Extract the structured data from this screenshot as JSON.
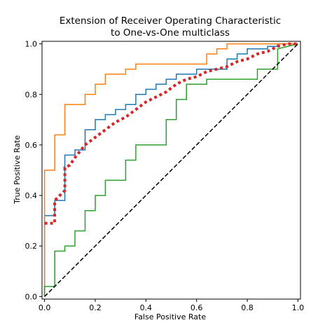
{
  "chart_data": {
    "type": "line",
    "title": [
      "Extension of Receiver Operating Characteristic",
      "to One-vs-One multiclass"
    ],
    "xlabel": "False Positive Rate",
    "ylabel": "True Positive Rate",
    "xlim": [
      -0.01,
      1.01
    ],
    "ylim": [
      -0.01,
      1.01
    ],
    "xticks": [
      0.0,
      0.2,
      0.4,
      0.6,
      0.8,
      1.0
    ],
    "yticks": [
      0.0,
      0.2,
      0.4,
      0.6,
      0.8,
      1.0
    ],
    "tick_labels": [
      "0.0",
      "0.2",
      "0.4",
      "0.6",
      "0.8",
      "1.0"
    ],
    "grid": false,
    "legend": null,
    "series": [
      {
        "color": "#1f77b4",
        "style": "solid",
        "step": true,
        "x": [
          0.0,
          0.0,
          0.04,
          0.04,
          0.08,
          0.08,
          0.12,
          0.12,
          0.16,
          0.16,
          0.2,
          0.2,
          0.24,
          0.24,
          0.28,
          0.28,
          0.32,
          0.32,
          0.36,
          0.36,
          0.4,
          0.4,
          0.44,
          0.44,
          0.48,
          0.48,
          0.52,
          0.52,
          0.6,
          0.6,
          0.72,
          0.72,
          0.76,
          0.76,
          0.8,
          0.8,
          0.88,
          0.88,
          0.92,
          0.92,
          1.0
        ],
        "y": [
          0.0,
          0.32,
          0.32,
          0.38,
          0.38,
          0.56,
          0.56,
          0.58,
          0.58,
          0.66,
          0.66,
          0.7,
          0.7,
          0.72,
          0.72,
          0.74,
          0.74,
          0.76,
          0.76,
          0.8,
          0.8,
          0.82,
          0.82,
          0.84,
          0.84,
          0.86,
          0.86,
          0.88,
          0.88,
          0.9,
          0.9,
          0.94,
          0.94,
          0.96,
          0.96,
          0.98,
          0.98,
          0.99,
          0.99,
          1.0,
          1.0
        ]
      },
      {
        "color": "#ff7f0e",
        "style": "solid",
        "step": true,
        "x": [
          0.0,
          0.0,
          0.04,
          0.04,
          0.08,
          0.08,
          0.16,
          0.16,
          0.2,
          0.2,
          0.24,
          0.24,
          0.32,
          0.32,
          0.36,
          0.36,
          0.64,
          0.64,
          0.68,
          0.68,
          0.72,
          0.72,
          1.0
        ],
        "y": [
          0.0,
          0.5,
          0.5,
          0.64,
          0.64,
          0.76,
          0.76,
          0.8,
          0.8,
          0.84,
          0.84,
          0.88,
          0.88,
          0.9,
          0.9,
          0.92,
          0.92,
          0.96,
          0.96,
          0.98,
          0.98,
          1.0,
          1.0
        ]
      },
      {
        "color": "#2ca02c",
        "style": "solid",
        "step": true,
        "x": [
          0.0,
          0.0,
          0.04,
          0.04,
          0.08,
          0.08,
          0.12,
          0.12,
          0.16,
          0.16,
          0.2,
          0.2,
          0.24,
          0.24,
          0.32,
          0.32,
          0.36,
          0.36,
          0.4,
          0.4,
          0.48,
          0.48,
          0.52,
          0.52,
          0.56,
          0.56,
          0.64,
          0.64,
          0.84,
          0.84,
          0.92,
          0.92,
          1.0
        ],
        "y": [
          0.0,
          0.04,
          0.04,
          0.18,
          0.18,
          0.2,
          0.2,
          0.26,
          0.26,
          0.34,
          0.34,
          0.4,
          0.4,
          0.46,
          0.46,
          0.54,
          0.54,
          0.6,
          0.6,
          0.6,
          0.6,
          0.7,
          0.7,
          0.78,
          0.78,
          0.84,
          0.84,
          0.86,
          0.86,
          0.9,
          0.9,
          0.98,
          1.0
        ]
      },
      {
        "color": "#d62728",
        "style": "dotted",
        "step": false,
        "x": [
          0.0,
          0.04,
          0.04,
          0.06,
          0.08,
          0.08,
          0.1,
          0.12,
          0.16,
          0.2,
          0.24,
          0.28,
          0.32,
          0.36,
          0.4,
          0.44,
          0.48,
          0.52,
          0.56,
          0.6,
          0.64,
          0.68,
          0.72,
          0.76,
          0.8,
          0.84,
          0.88,
          0.92,
          0.96,
          1.0
        ],
        "y": [
          0.29,
          0.29,
          0.38,
          0.4,
          0.42,
          0.51,
          0.52,
          0.55,
          0.6,
          0.63,
          0.66,
          0.69,
          0.71,
          0.74,
          0.77,
          0.79,
          0.81,
          0.84,
          0.86,
          0.87,
          0.89,
          0.9,
          0.91,
          0.93,
          0.94,
          0.96,
          0.97,
          0.99,
          1.0,
          1.0
        ]
      },
      {
        "color": "#000000",
        "style": "dashed",
        "step": false,
        "x": [
          0.0,
          1.0
        ],
        "y": [
          0.0,
          1.0
        ]
      }
    ]
  }
}
